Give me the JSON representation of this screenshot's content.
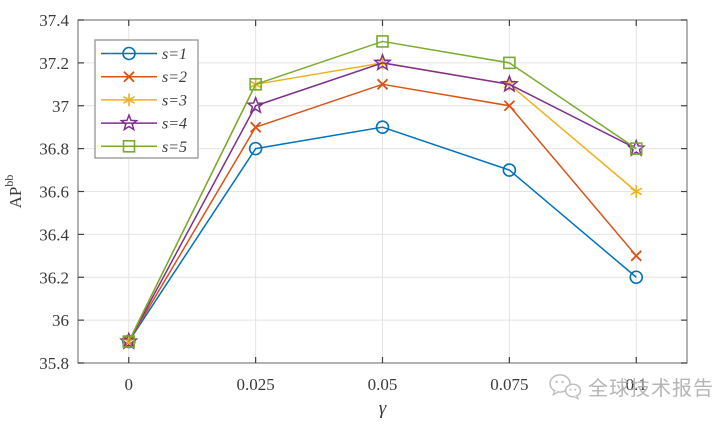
{
  "watermark": {
    "text": "全球技术报告",
    "icon": "chat-bubbles-icon"
  },
  "chart_data": {
    "type": "line",
    "title": "",
    "xlabel": "γ",
    "ylabel": "AP",
    "ylabel_superscript": "bb",
    "x": [
      0,
      0.025,
      0.05,
      0.075,
      0.1
    ],
    "x_tick_labels": [
      "0",
      "0.025",
      "0.05",
      "0.075",
      "0.1"
    ],
    "y_ticks": [
      35.8,
      36,
      36.2,
      36.4,
      36.6,
      36.8,
      37,
      37.2,
      37.4
    ],
    "y_tick_labels": [
      "35.8",
      "36",
      "36.2",
      "36.4",
      "36.6",
      "36.8",
      "37",
      "37.2",
      "37.4"
    ],
    "xlim": [
      -0.01,
      0.11
    ],
    "ylim": [
      35.8,
      37.4
    ],
    "grid": true,
    "legend_position": "upper-left-inside",
    "axis_box_color": "#7f7f7f",
    "grid_color": "#e4e4e4",
    "tick_color": "#404040",
    "series": [
      {
        "name": "s=1",
        "marker": "circle",
        "color": "#0072BD",
        "values": [
          35.9,
          36.8,
          36.9,
          36.7,
          36.2
        ]
      },
      {
        "name": "s=2",
        "marker": "x",
        "color": "#D95319",
        "values": [
          35.9,
          36.9,
          37.1,
          37.0,
          36.3
        ]
      },
      {
        "name": "s=3",
        "marker": "asterisk",
        "color": "#EDB120",
        "values": [
          35.9,
          37.1,
          37.2,
          37.1,
          36.6
        ]
      },
      {
        "name": "s=4",
        "marker": "pentagram",
        "color": "#7E2F8E",
        "values": [
          35.9,
          37.0,
          37.2,
          37.1,
          36.8
        ]
      },
      {
        "name": "s=5",
        "marker": "square",
        "color": "#77AC30",
        "values": [
          35.9,
          37.1,
          37.3,
          37.2,
          36.8
        ]
      }
    ]
  }
}
